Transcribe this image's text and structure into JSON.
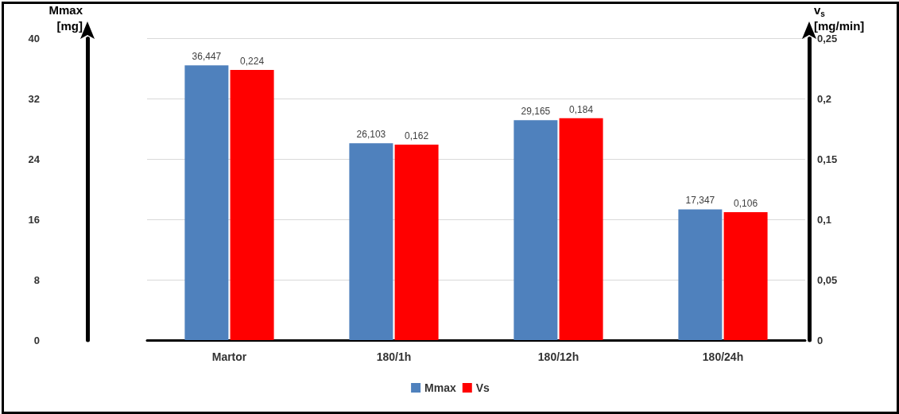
{
  "chart_data": {
    "type": "bar",
    "ylabel": "Mmax\n[mg]",
    "y2label": "v$_{s}$\n[mg/min]",
    "categories": [
      "Martor",
      "180/1h",
      "180/12h",
      "180/24h"
    ],
    "series": [
      {
        "name": "Mmax",
        "color": "#4f81bd",
        "values": [
          36.447,
          26.103,
          29.165,
          17.347
        ],
        "value_labels": [
          "36,447",
          "26,103",
          "29,165",
          "17,347"
        ]
      },
      {
        "name": "Vs",
        "color": "#ff0000",
        "axis": "y2",
        "values": [
          0.224,
          0.162,
          0.184,
          0.106
        ],
        "value_labels": [
          "0,224",
          "0,162",
          "0,184",
          "0,106"
        ]
      }
    ],
    "ylim": [
      0,
      40
    ],
    "yticks": [
      0,
      8,
      16,
      24,
      32,
      40
    ],
    "y2lim": [
      0,
      0.25
    ],
    "y2ticks": [
      0,
      {
        "value": 0.05,
        "label": "0,05"
      },
      {
        "value": 0.1,
        "label": "0,1"
      },
      {
        "value": 0.15,
        "label": "0,15"
      },
      {
        "value": 0.2,
        "label": "0,2"
      },
      {
        "value": 0.25,
        "label": "0,25"
      }
    ],
    "grid": "y",
    "legend": "bottom"
  }
}
